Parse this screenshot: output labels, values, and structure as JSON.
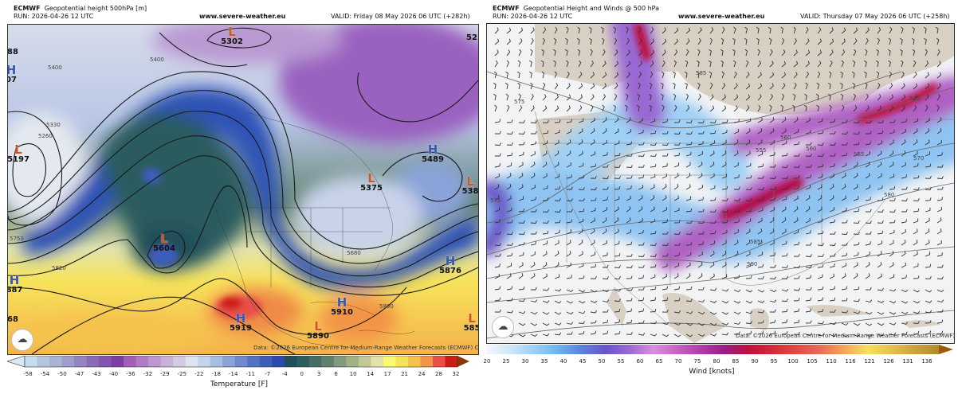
{
  "left": {
    "model": "ECMWF",
    "title": "Geopotential height 500hPa [m]",
    "run": "RUN: 2026-04-26 12 UTC",
    "site": "www.severe-weather.eu",
    "valid": "VALID: Friday 08 May 2026 06 UTC (+282h)",
    "credit": "Data: ©2026 European Centre for Medium-Range Weather Forecasts (ECMWF) CC BY 4.0",
    "centers": [
      {
        "type": "L",
        "value": "5302"
      },
      {
        "type": "L",
        "value": "5197"
      },
      {
        "type": "H",
        "value": "07"
      },
      {
        "type": "",
        "value": "88"
      },
      {
        "type": "L",
        "value": "5604"
      },
      {
        "type": "L",
        "value": "5375"
      },
      {
        "type": "H",
        "value": "5489"
      },
      {
        "type": "L",
        "value": "538"
      },
      {
        "type": "",
        "value": "52"
      },
      {
        "type": "H",
        "value": "5876"
      },
      {
        "type": "H",
        "value": "887"
      },
      {
        "type": "",
        "value": "68"
      },
      {
        "type": "H",
        "value": "5919"
      },
      {
        "type": "H",
        "value": "5910"
      },
      {
        "type": "L",
        "value": "5890"
      },
      {
        "type": "L",
        "value": "585"
      }
    ],
    "contour_labels": [
      "5400",
      "5400",
      "5750",
      "5820",
      "5890",
      "5330",
      "5260",
      "5680"
    ],
    "colorbar": {
      "title": "Temperature [F]",
      "ticks": [
        "-58",
        "-54",
        "-50",
        "-47",
        "-43",
        "-40",
        "-36",
        "-32",
        "-29",
        "-25",
        "-22",
        "-18",
        "-14",
        "-11",
        "-7",
        "-4",
        "0",
        "3",
        "6",
        "10",
        "14",
        "17",
        "21",
        "24",
        "28",
        "32"
      ],
      "colors": [
        "#c6dcef",
        "#b5c6dc",
        "#a9b4d2",
        "#9f9ecb",
        "#9584c2",
        "#8a6bb8",
        "#8354ad",
        "#7c3fa3",
        "#a25fb8",
        "#b07bc4",
        "#bd97cf",
        "#c9b2da",
        "#d4cbe3",
        "#dde5ee",
        "#c4d5ea",
        "#a8bde2",
        "#8aa3d8",
        "#6e89cd",
        "#5272c3",
        "#3c5dba",
        "#2a4aaf",
        "#204f5a",
        "#2c5e60",
        "#456f66",
        "#5f816e",
        "#7f9a7c",
        "#a1b287",
        "#c3c896",
        "#e2e3ac",
        "#fafa72",
        "#f7e35a",
        "#f5c24c",
        "#f39447",
        "#e8504a",
        "#cc1f14"
      ],
      "over_color": "#8c3508",
      "under_color": "#d8e8f5"
    }
  },
  "right": {
    "model": "ECMWF",
    "title": "Geopotential Height and Winds @ 500 hPa",
    "run": "RUN: 2026-04-26 12 UTC",
    "site": "www.severe-weather.eu",
    "valid": "VALID: Thursday 07 May 2026 06 UTC (+258h)",
    "credit": "Data: ©2026 European Centre for Medium-Range Weather Forecasts (ECMWF) CC BY 4.0",
    "contour_labels": [
      "575",
      "585",
      "540",
      "560",
      "555",
      "560",
      "565",
      "570",
      "580",
      "585",
      "590",
      "575"
    ],
    "colorbar": {
      "title": "Wind [knots]",
      "ticks": [
        "20",
        "25",
        "30",
        "35",
        "40",
        "45",
        "50",
        "55",
        "60",
        "65",
        "70",
        "75",
        "80",
        "85",
        "90",
        "95",
        "100",
        "105",
        "110",
        "116",
        "121",
        "126",
        "131",
        "136"
      ],
      "colors": [
        "#f4f8fc",
        "#cfe6f8",
        "#9fd0f5",
        "#6fb3ee",
        "#5c82dc",
        "#6a55c8",
        "#9a68d3",
        "#d690dd",
        "#c765c0",
        "#ad3fa6",
        "#9a1d86",
        "#c0103a",
        "#d42a3a",
        "#e04848",
        "#ea6a5a",
        "#f4a45a",
        "#f6e25a",
        "#e2c24a",
        "#c9a43a",
        "#b08a2a"
      ],
      "over_color": "#9c5a08"
    }
  }
}
